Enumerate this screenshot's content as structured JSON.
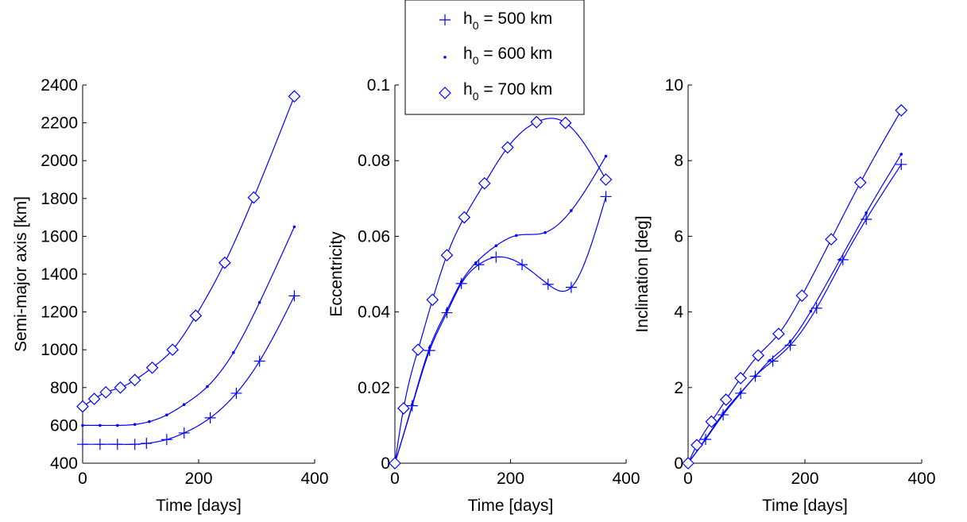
{
  "colors": {
    "series": "#0000ff",
    "axis": "#000000",
    "background": "#ffffff"
  },
  "legend": {
    "position": "top-center",
    "entries": [
      {
        "marker": "plus",
        "base": "h",
        "sub": "0",
        "rest": " = 500 km"
      },
      {
        "marker": "dot",
        "base": "h",
        "sub": "0",
        "rest": " = 600 km"
      },
      {
        "marker": "diamond",
        "base": "h",
        "sub": "0",
        "rest": " = 700 km"
      }
    ]
  },
  "chart_data": [
    {
      "type": "line",
      "xlabel": "Time [days]",
      "ylabel": "Semi-major axis [km]",
      "xlim": [
        0,
        400
      ],
      "ylim": [
        400,
        2400
      ],
      "xticks": [
        "0",
        "200",
        "400"
      ],
      "yticks": [
        "400",
        "600",
        "800",
        "1000",
        "1200",
        "1400",
        "1600",
        "1800",
        "2000",
        "2200",
        "2400"
      ],
      "grid": false,
      "series": [
        {
          "marker": "plus",
          "x": [
            0,
            30,
            60,
            90,
            110,
            145,
            175,
            220,
            265,
            305,
            365
          ],
          "y": [
            500,
            500,
            500,
            500,
            505,
            525,
            560,
            640,
            770,
            940,
            1285
          ]
        },
        {
          "marker": "dot",
          "x": [
            0,
            30,
            60,
            90,
            115,
            145,
            175,
            215,
            260,
            305,
            365
          ],
          "y": [
            600,
            600,
            600,
            605,
            620,
            655,
            710,
            805,
            985,
            1250,
            1650
          ]
        },
        {
          "marker": "diamond",
          "x": [
            0,
            20,
            40,
            65,
            90,
            120,
            155,
            195,
            245,
            295,
            365
          ],
          "y": [
            700,
            740,
            775,
            800,
            840,
            905,
            1000,
            1180,
            1460,
            1805,
            2340
          ]
        }
      ]
    },
    {
      "type": "line",
      "xlabel": "Time [days]",
      "ylabel": "Eccentricity",
      "xlim": [
        0,
        400
      ],
      "ylim": [
        0,
        0.1
      ],
      "xticks": [
        "0",
        "200",
        "400"
      ],
      "yticks": [
        "0",
        "0.02",
        "0.04",
        "0.06",
        "0.08",
        "0.1"
      ],
      "grid": false,
      "series": [
        {
          "marker": "plus",
          "x": [
            0,
            30,
            60,
            90,
            115,
            145,
            175,
            220,
            265,
            305,
            365
          ],
          "y": [
            0,
            0.0152,
            0.0298,
            0.0398,
            0.0475,
            0.0525,
            0.0545,
            0.0525,
            0.0473,
            0.0465,
            0.0705
          ]
        },
        {
          "marker": "dot",
          "x": [
            0,
            30,
            60,
            90,
            115,
            140,
            175,
            210,
            260,
            305,
            365
          ],
          "y": [
            0,
            0.0155,
            0.0305,
            0.0405,
            0.048,
            0.053,
            0.0575,
            0.0602,
            0.061,
            0.0668,
            0.0812
          ]
        },
        {
          "marker": "diamond",
          "x": [
            0,
            15,
            40,
            65,
            90,
            120,
            155,
            195,
            245,
            295,
            365
          ],
          "y": [
            0,
            0.0145,
            0.03,
            0.0432,
            0.055,
            0.065,
            0.074,
            0.0835,
            0.0902,
            0.09,
            0.075
          ]
        }
      ]
    },
    {
      "type": "line",
      "xlabel": "Time [days]",
      "ylabel": "Inclination [deg]",
      "xlim": [
        0,
        400
      ],
      "ylim": [
        0,
        10
      ],
      "xticks": [
        "0",
        "200",
        "400"
      ],
      "yticks": [
        "0",
        "2",
        "4",
        "6",
        "8",
        "10"
      ],
      "grid": false,
      "series": [
        {
          "marker": "plus",
          "x": [
            0,
            30,
            60,
            90,
            115,
            145,
            175,
            220,
            265,
            305,
            365
          ],
          "y": [
            0,
            0.63,
            1.28,
            1.85,
            2.3,
            2.7,
            3.12,
            4.1,
            5.38,
            6.45,
            7.9
          ]
        },
        {
          "marker": "dot",
          "x": [
            0,
            30,
            60,
            90,
            115,
            140,
            175,
            210,
            260,
            305,
            365
          ],
          "y": [
            0,
            0.65,
            1.32,
            1.87,
            2.3,
            2.72,
            3.22,
            4.02,
            5.38,
            6.62,
            8.17
          ]
        },
        {
          "marker": "diamond",
          "x": [
            0,
            15,
            40,
            65,
            90,
            120,
            155,
            195,
            245,
            295,
            365
          ],
          "y": [
            0,
            0.48,
            1.1,
            1.68,
            2.25,
            2.85,
            3.42,
            4.43,
            5.92,
            7.42,
            9.33
          ]
        }
      ]
    }
  ]
}
